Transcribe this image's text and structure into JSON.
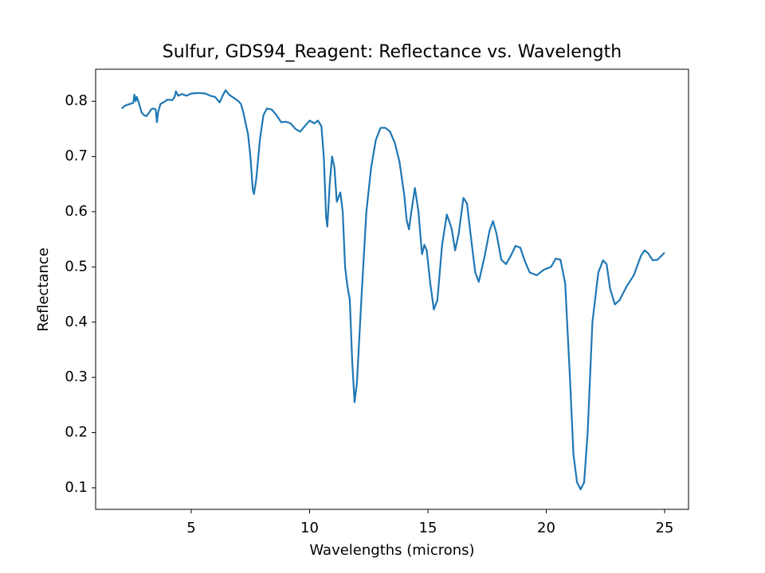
{
  "chart_data": {
    "type": "line",
    "title": "Sulfur, GDS94_Reagent: Reflectance vs. Wavelength",
    "x_label": "Wavelengths (microns)",
    "y_label": "Reflectance",
    "color": "#1f77b4",
    "x": [
      2.06,
      2.2,
      2.4,
      2.55,
      2.6,
      2.65,
      2.7,
      2.8,
      2.9,
      3.0,
      3.1,
      3.2,
      3.3,
      3.4,
      3.5,
      3.55,
      3.6,
      3.7,
      3.9,
      4.0,
      4.2,
      4.3,
      4.35,
      4.45,
      4.6,
      4.8,
      5.0,
      5.3,
      5.6,
      5.8,
      6.0,
      6.2,
      6.35,
      6.45,
      6.6,
      6.8,
      7.0,
      7.1,
      7.2,
      7.4,
      7.5,
      7.6,
      7.65,
      7.75,
      7.9,
      8.05,
      8.2,
      8.4,
      8.6,
      8.8,
      9.0,
      9.2,
      9.4,
      9.6,
      9.8,
      10.0,
      10.2,
      10.35,
      10.5,
      10.6,
      10.7,
      10.75,
      10.85,
      10.95,
      11.05,
      11.15,
      11.3,
      11.4,
      11.5,
      11.6,
      11.7,
      11.8,
      11.9,
      12.0,
      12.2,
      12.4,
      12.6,
      12.8,
      13.0,
      13.2,
      13.4,
      13.6,
      13.8,
      14.0,
      14.1,
      14.2,
      14.3,
      14.45,
      14.6,
      14.75,
      14.85,
      14.95,
      15.1,
      15.25,
      15.4,
      15.6,
      15.8,
      16.0,
      16.15,
      16.3,
      16.5,
      16.65,
      16.8,
      17.0,
      17.15,
      17.4,
      17.6,
      17.75,
      17.9,
      18.1,
      18.3,
      18.5,
      18.7,
      18.9,
      19.1,
      19.3,
      19.6,
      19.9,
      20.2,
      20.4,
      20.6,
      20.8,
      21.0,
      21.15,
      21.3,
      21.45,
      21.6,
      21.75,
      21.95,
      22.2,
      22.4,
      22.55,
      22.7,
      22.9,
      23.1,
      23.4,
      23.7,
      24.0,
      24.15,
      24.3,
      24.5,
      24.7,
      25.0
    ],
    "values": [
      0.787,
      0.792,
      0.795,
      0.797,
      0.812,
      0.8,
      0.808,
      0.795,
      0.78,
      0.775,
      0.773,
      0.778,
      0.785,
      0.787,
      0.785,
      0.762,
      0.78,
      0.795,
      0.8,
      0.803,
      0.802,
      0.808,
      0.818,
      0.81,
      0.813,
      0.81,
      0.814,
      0.815,
      0.814,
      0.81,
      0.808,
      0.798,
      0.812,
      0.82,
      0.812,
      0.806,
      0.8,
      0.795,
      0.78,
      0.74,
      0.7,
      0.64,
      0.632,
      0.66,
      0.73,
      0.775,
      0.787,
      0.785,
      0.775,
      0.762,
      0.763,
      0.76,
      0.75,
      0.745,
      0.755,
      0.765,
      0.76,
      0.765,
      0.755,
      0.7,
      0.59,
      0.573,
      0.65,
      0.7,
      0.68,
      0.618,
      0.635,
      0.6,
      0.5,
      0.465,
      0.44,
      0.33,
      0.255,
      0.29,
      0.45,
      0.6,
      0.68,
      0.73,
      0.752,
      0.752,
      0.745,
      0.725,
      0.69,
      0.63,
      0.585,
      0.568,
      0.6,
      0.643,
      0.6,
      0.523,
      0.54,
      0.53,
      0.47,
      0.423,
      0.44,
      0.54,
      0.595,
      0.57,
      0.53,
      0.56,
      0.625,
      0.615,
      0.56,
      0.49,
      0.473,
      0.52,
      0.565,
      0.583,
      0.56,
      0.513,
      0.505,
      0.52,
      0.538,
      0.535,
      0.51,
      0.49,
      0.485,
      0.495,
      0.5,
      0.515,
      0.513,
      0.47,
      0.3,
      0.16,
      0.11,
      0.097,
      0.11,
      0.2,
      0.4,
      0.49,
      0.512,
      0.505,
      0.46,
      0.432,
      0.44,
      0.465,
      0.485,
      0.52,
      0.53,
      0.525,
      0.512,
      0.513,
      0.526
    ],
    "xlim": [
      0.96,
      26.01
    ],
    "xticks": [
      5,
      10,
      15,
      20,
      25
    ],
    "ylim": [
      0.061,
      0.858
    ],
    "yticks": [
      0.1,
      0.2,
      0.3,
      0.4,
      0.5,
      0.6,
      0.7,
      0.8
    ]
  }
}
